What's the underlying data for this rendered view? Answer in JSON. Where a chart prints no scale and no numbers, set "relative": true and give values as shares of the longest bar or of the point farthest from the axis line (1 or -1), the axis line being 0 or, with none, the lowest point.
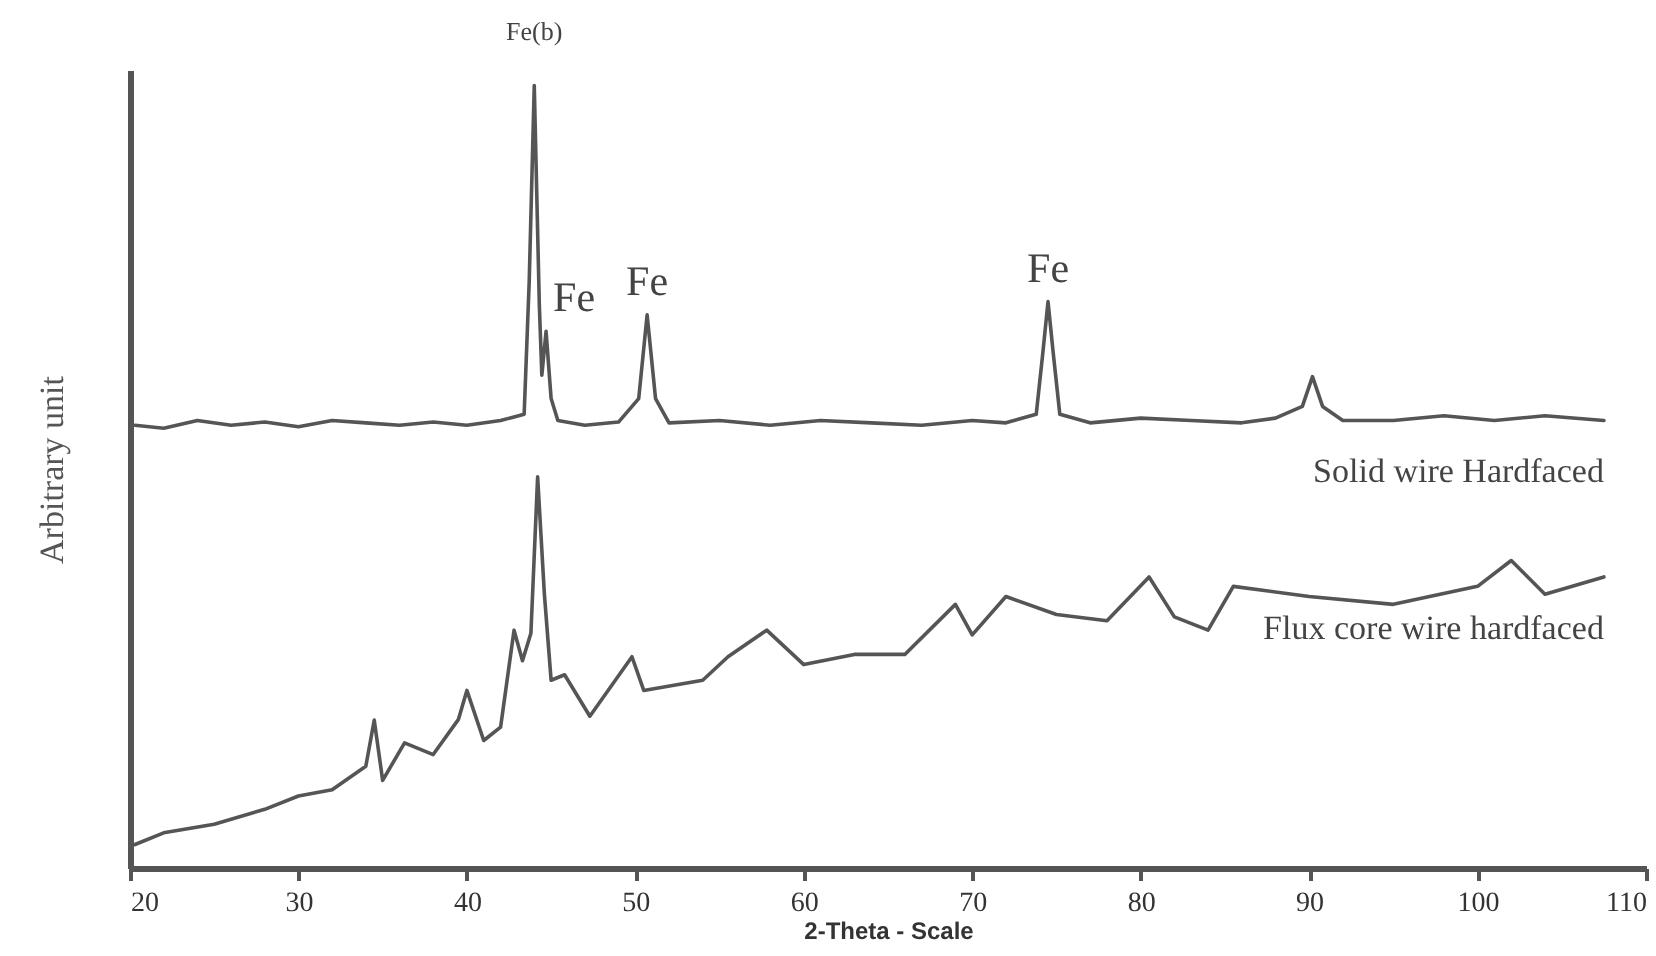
{
  "chart_data": {
    "type": "line",
    "relative": true,
    "xlabel": "2-Theta - Scale",
    "ylabel": "Arbitrary unit",
    "xlim": [
      20,
      110
    ],
    "xticks": [
      20,
      30,
      40,
      50,
      60,
      70,
      80,
      90,
      100,
      110
    ],
    "grid": false,
    "marker": "none",
    "line_style": "solid",
    "series": [
      {
        "name": "Solid wire Hardfaced",
        "color": "#555555",
        "x": [
          20.3,
          22,
          24,
          26,
          28,
          30,
          32,
          34,
          36,
          38,
          40,
          42,
          43.4,
          43.7,
          44.0,
          44.3,
          44.45,
          44.7,
          45.0,
          45.4,
          47,
          49,
          50.2,
          50.7,
          51.2,
          52,
          55,
          58,
          61,
          64,
          67,
          70,
          72,
          73.8,
          74.2,
          74.5,
          74.8,
          75.2,
          77,
          80,
          83,
          86,
          88,
          89.6,
          90.2,
          90.8,
          92,
          95,
          98,
          101,
          104,
          107.5
        ],
        "values": [
          0.566,
          0.562,
          0.572,
          0.566,
          0.57,
          0.564,
          0.572,
          0.569,
          0.566,
          0.57,
          0.566,
          0.572,
          0.58,
          0.75,
          1.0,
          0.72,
          0.63,
          0.686,
          0.6,
          0.572,
          0.566,
          0.57,
          0.6,
          0.707,
          0.6,
          0.569,
          0.572,
          0.566,
          0.572,
          0.569,
          0.566,
          0.572,
          0.569,
          0.58,
          0.66,
          0.724,
          0.66,
          0.58,
          0.569,
          0.575,
          0.572,
          0.569,
          0.575,
          0.59,
          0.628,
          0.59,
          0.572,
          0.572,
          0.578,
          0.572,
          0.578,
          0.572
        ]
      },
      {
        "name": "Flux core wire hardfaced",
        "color": "#555555",
        "x": [
          20.3,
          22,
          25,
          28,
          30,
          32,
          34,
          34.5,
          35,
          36.3,
          38,
          39.5,
          40,
          41,
          42,
          42.8,
          43.3,
          43.8,
          44.2,
          44.6,
          45,
          45.8,
          47.3,
          49.8,
          50.5,
          54,
          55.5,
          57.8,
          60,
          63,
          66,
          69,
          70,
          72,
          75,
          78,
          80.5,
          82,
          84,
          85.5,
          90,
          95,
          100,
          102,
          104,
          107.5
        ],
        "values": [
          0.03,
          0.045,
          0.056,
          0.075,
          0.092,
          0.1,
          0.13,
          0.189,
          0.112,
          0.16,
          0.145,
          0.19,
          0.227,
          0.163,
          0.18,
          0.304,
          0.265,
          0.3,
          0.5,
          0.35,
          0.24,
          0.247,
          0.194,
          0.27,
          0.227,
          0.24,
          0.27,
          0.304,
          0.26,
          0.273,
          0.273,
          0.337,
          0.298,
          0.347,
          0.324,
          0.316,
          0.372,
          0.321,
          0.304,
          0.36,
          0.347,
          0.337,
          0.36,
          0.393,
          0.35,
          0.372
        ]
      }
    ],
    "annotations": [
      {
        "text": "Fe(b)",
        "x": 44.0,
        "y": 1.0
      },
      {
        "text": "Fe",
        "x": 44.7,
        "y": 0.686
      },
      {
        "text": "Fe",
        "x": 50.7,
        "y": 0.707
      },
      {
        "text": "Fe",
        "x": 74.5,
        "y": 0.724
      }
    ]
  }
}
